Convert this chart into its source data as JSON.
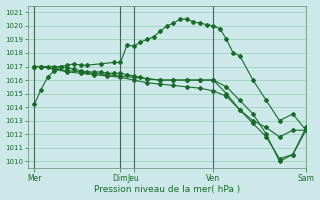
{
  "title": "Pression niveau de la mer( hPa )",
  "bg_color": "#cce8e8",
  "plot_bg_color": "#cce8e8",
  "grid_color": "#99ccbb",
  "line_color": "#1a6b2a",
  "vline_color": "#446655",
  "ylim": [
    1009.5,
    1021.5
  ],
  "yticks": [
    1010,
    1011,
    1012,
    1013,
    1014,
    1015,
    1016,
    1017,
    1018,
    1019,
    1020,
    1021
  ],
  "ytick_fontsize": 5.0,
  "xlabel_fontsize": 6.5,
  "xtick_fontsize": 5.5,
  "xlim": [
    0,
    21
  ],
  "xtick_positions": [
    0.5,
    7.0,
    8.0,
    14.0,
    21.0
  ],
  "xtick_labels": [
    "Mer",
    "Dim",
    "Jeu",
    "Ven",
    "Sam"
  ],
  "vline_positions": [
    0.5,
    7.0,
    8.0,
    14.0,
    21.0
  ],
  "series": [
    {
      "x": [
        0.5,
        1.0,
        1.5,
        2.0,
        2.5,
        3.0,
        3.5,
        4.0,
        4.5,
        5.5,
        6.5,
        7.0,
        7.5,
        8.0,
        8.5,
        9.0,
        9.5,
        10.0,
        10.5,
        11.0,
        11.5,
        12.0,
        12.5,
        13.0,
        13.5,
        14.0,
        14.5,
        15.0,
        15.5,
        16.0,
        17.0,
        18.0,
        19.0,
        20.0,
        21.0
      ],
      "y": [
        1014.2,
        1015.3,
        1016.2,
        1016.7,
        1017.0,
        1017.1,
        1017.2,
        1017.1,
        1017.1,
        1017.2,
        1017.3,
        1017.3,
        1018.6,
        1018.5,
        1018.8,
        1019.0,
        1019.2,
        1019.6,
        1020.0,
        1020.2,
        1020.5,
        1020.5,
        1020.3,
        1020.2,
        1020.1,
        1020.0,
        1019.8,
        1019.0,
        1018.0,
        1017.8,
        1016.0,
        1014.5,
        1013.0,
        1013.5,
        1012.3
      ]
    },
    {
      "x": [
        0.5,
        1.0,
        1.5,
        2.0,
        2.5,
        3.0,
        3.5,
        4.0,
        4.5,
        5.0,
        5.5,
        6.0,
        6.5,
        7.0,
        7.5,
        8.0,
        8.5,
        9.0,
        10.0,
        11.0,
        12.0,
        13.0,
        14.0,
        15.0,
        16.0,
        17.0,
        18.0,
        19.0,
        20.0,
        21.0
      ],
      "y": [
        1017.0,
        1017.0,
        1017.0,
        1017.0,
        1017.0,
        1016.9,
        1016.8,
        1016.7,
        1016.6,
        1016.6,
        1016.6,
        1016.5,
        1016.5,
        1016.5,
        1016.4,
        1016.3,
        1016.2,
        1016.1,
        1016.0,
        1016.0,
        1016.0,
        1016.0,
        1016.0,
        1015.5,
        1014.5,
        1013.5,
        1012.0,
        1010.0,
        1010.5,
        1012.3
      ]
    },
    {
      "x": [
        0.5,
        1.0,
        2.0,
        3.0,
        4.0,
        5.0,
        6.0,
        7.0,
        8.0,
        9.0,
        10.0,
        11.0,
        12.0,
        13.0,
        14.0,
        15.0,
        16.0,
        17.0,
        18.0,
        19.0,
        20.0,
        21.0
      ],
      "y": [
        1017.0,
        1017.0,
        1016.8,
        1016.7,
        1016.6,
        1016.5,
        1016.4,
        1016.3,
        1016.2,
        1016.1,
        1016.0,
        1016.0,
        1016.0,
        1016.0,
        1016.0,
        1015.0,
        1013.8,
        1013.0,
        1012.5,
        1011.8,
        1012.3,
        1012.3
      ]
    },
    {
      "x": [
        0.5,
        1.0,
        2.0,
        3.0,
        4.0,
        5.0,
        6.0,
        7.0,
        8.0,
        9.0,
        10.0,
        11.0,
        12.0,
        13.0,
        14.0,
        15.0,
        16.0,
        17.0,
        18.0,
        19.0,
        20.0,
        21.0
      ],
      "y": [
        1017.0,
        1017.0,
        1016.8,
        1016.6,
        1016.5,
        1016.4,
        1016.3,
        1016.2,
        1016.0,
        1015.8,
        1015.7,
        1015.6,
        1015.5,
        1015.4,
        1015.2,
        1014.8,
        1013.8,
        1012.8,
        1011.8,
        1010.2,
        1010.5,
        1012.5
      ]
    }
  ]
}
